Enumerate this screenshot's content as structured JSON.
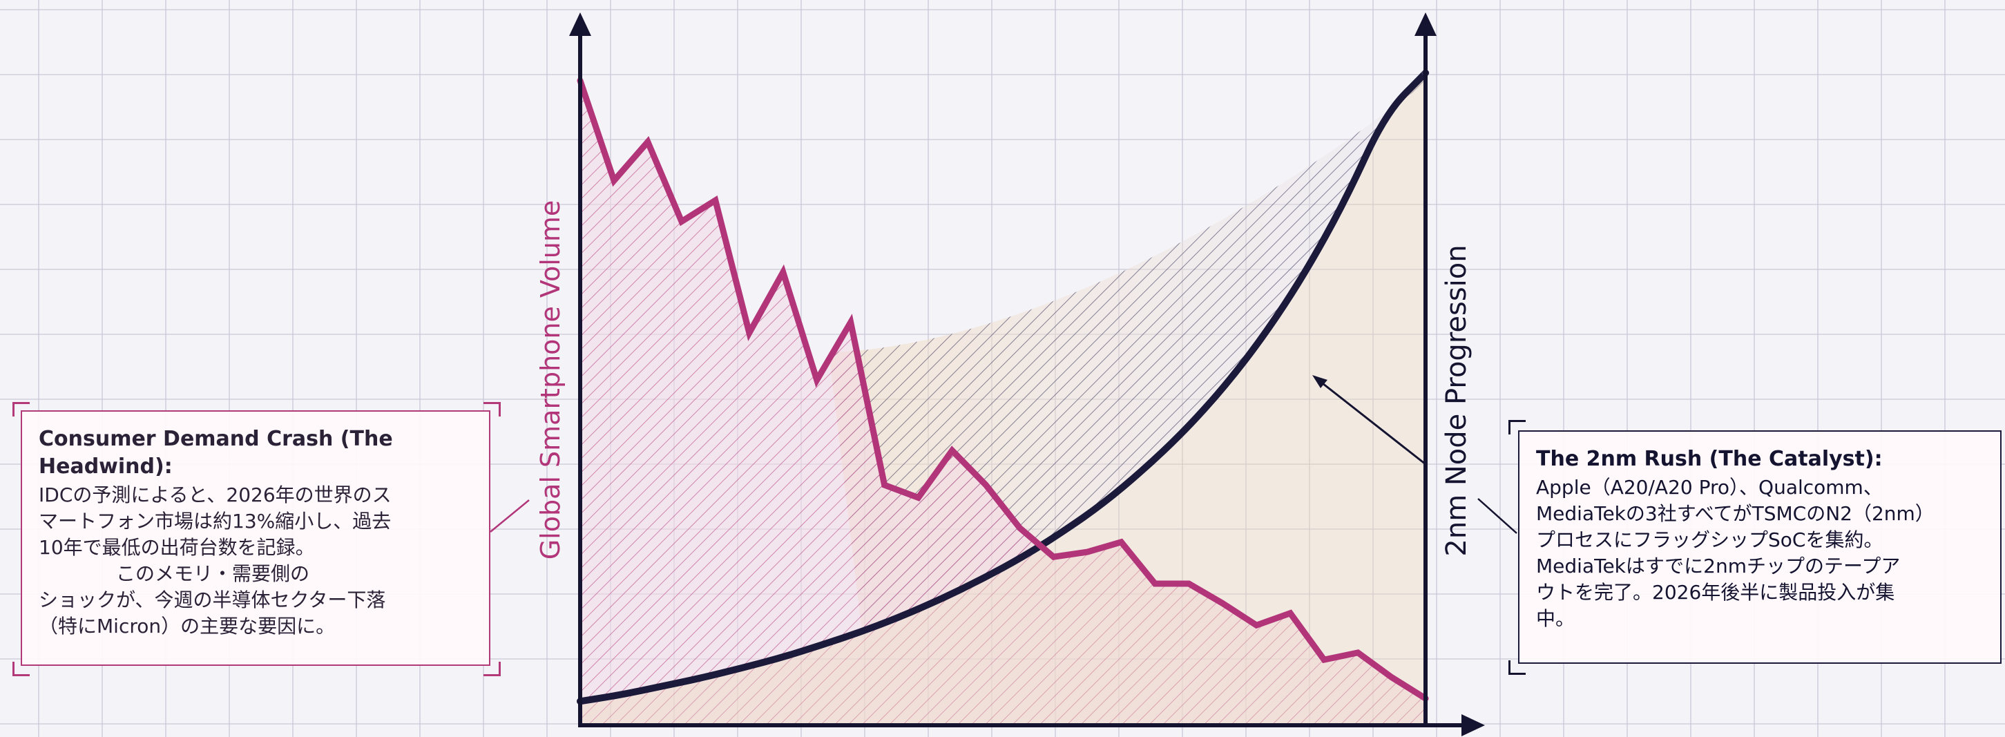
{
  "chart_data": {
    "type": "line",
    "axes": {
      "left_label": "Global Smartphone Volume",
      "right_label": "2nm Node Progression"
    },
    "series": [
      {
        "role": "smartphone-volume",
        "color": "#b2357a",
        "axis": "left",
        "values": [
          0.915,
          0.773,
          0.828,
          0.715,
          0.745,
          0.557,
          0.643,
          0.49,
          0.572,
          0.341,
          0.323,
          0.39,
          0.341,
          0.28,
          0.239,
          0.246,
          0.26,
          0.201,
          0.201,
          0.173,
          0.142,
          0.159,
          0.093,
          0.103,
          0.068,
          0.038
        ]
      },
      {
        "role": "2nm-node-progression",
        "color": "#1b1a3b",
        "axis": "right",
        "values": [
          0.034,
          0.043,
          0.055,
          0.067,
          0.081,
          0.096,
          0.114,
          0.133,
          0.155,
          0.18,
          0.208,
          0.239,
          0.275,
          0.315,
          0.363,
          0.417,
          0.48,
          0.554,
          0.641,
          0.744,
          0.868,
          0.926
        ]
      }
    ],
    "grid": true,
    "legend": "none"
  },
  "annotations": {
    "left": {
      "title": "Consumer Demand Crash (The Headwind):",
      "body": "IDCの予測によると、2026年の世界のス\nマートフォン市場は約13%縮小し、過去\n10年で最低の出荷台数を記録。\n　　　　このメモリ・需要側の\nショックが、今週の半導体セクター下落\n（特にMicron）の主要な要因に。"
    },
    "right": {
      "title": "The 2nm Rush (The Catalyst):",
      "body": "Apple（A20/A20 Pro）、Qualcomm、\nMediaTekの3社すべてがTSMCのN2（2nm）\nプロセスにフラッグシップSoCを集約。\nMediaTekはすでに2nmチップのテープア\nウトを完了。2026年後半に製品投入が集\n中。"
    }
  },
  "colors": {
    "background": "#f4f3f7",
    "grid": "#c9c8d6",
    "accent_magenta": "#b2357a",
    "accent_navy": "#1b1a3b",
    "hatch_fill": "#ecd7b3"
  }
}
